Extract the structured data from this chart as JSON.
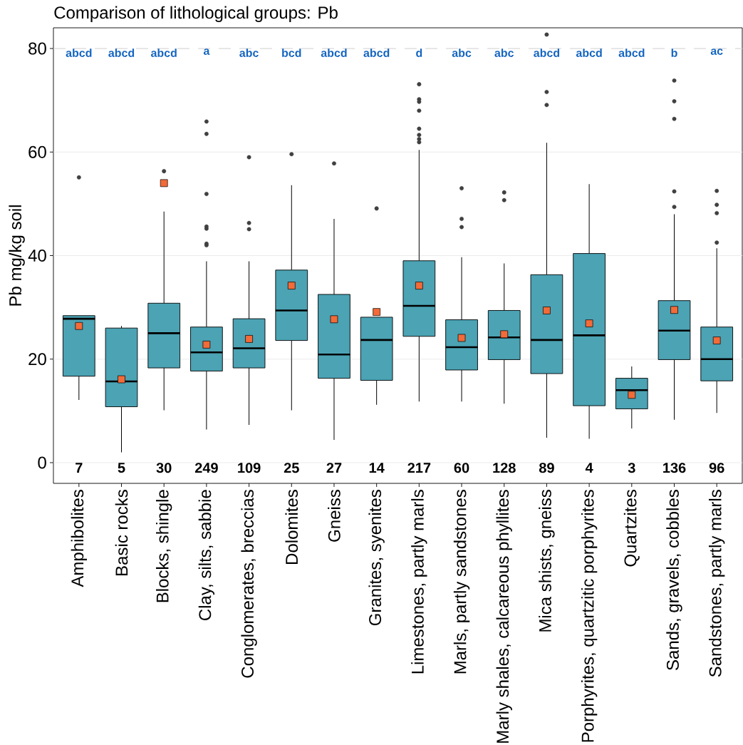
{
  "chart_data": {
    "type": "box",
    "title": "Comparison of lithological groups: Pb",
    "ylabel": "Pb mg/kg soil",
    "categories": [
      "Amphibolites",
      "Basic rocks",
      "Blocks, shingle",
      "Clay, silts, sabbie",
      "Conglomerates, breccias",
      "Dolomites",
      "Gneiss",
      "Granites, syenites",
      "Limestones, partly marls",
      "Marls, partly sandstones",
      "Marly shales, calcareous phyllites",
      "Mica shists, gneiss",
      "Porphyrites, quartzitic porphyrites",
      "Quartzites",
      "Sands, gravels, cobbles",
      "Sandstones, partly marls"
    ],
    "color": "#4ba3b4",
    "boxes": [
      {
        "low": 12.1,
        "q1": 16.7,
        "median": 27.8,
        "q3": 28.4,
        "high": 28.4,
        "mean": 26.4,
        "outliers": [
          55.1
        ]
      },
      {
        "low": 2.0,
        "q1": 10.8,
        "median": 15.7,
        "q3": 26.0,
        "high": 26.4,
        "mean": 16.1
      },
      {
        "low": 10.1,
        "q1": 18.3,
        "median": 25.0,
        "q3": 30.8,
        "high": 48.5,
        "mean": 54.0,
        "outliers": [
          56.3
        ]
      },
      {
        "low": 6.4,
        "q1": 17.7,
        "median": 21.3,
        "q3": 26.2,
        "high": 38.9,
        "mean": 22.8,
        "outliers": [
          42.0,
          42.3,
          45.2,
          45.6,
          51.9,
          63.5,
          65.9
        ]
      },
      {
        "low": 7.3,
        "q1": 18.3,
        "median": 22.1,
        "q3": 27.8,
        "high": 38.9,
        "mean": 23.9,
        "outliers": [
          45.1,
          46.3,
          59.0
        ]
      },
      {
        "low": 10.1,
        "q1": 23.6,
        "median": 29.4,
        "q3": 37.2,
        "high": 53.6,
        "mean": 34.2,
        "outliers": [
          59.6
        ]
      },
      {
        "low": 4.4,
        "q1": 16.3,
        "median": 20.9,
        "q3": 32.5,
        "high": 47.1,
        "mean": 27.7,
        "outliers": [
          57.8
        ]
      },
      {
        "low": 11.2,
        "q1": 15.9,
        "median": 23.7,
        "q3": 28.1,
        "high": 28.1,
        "mean": 29.1,
        "outliers": [
          49.1
        ]
      },
      {
        "low": 11.8,
        "q1": 24.4,
        "median": 30.3,
        "q3": 39.0,
        "high": 60.4,
        "mean": 34.2,
        "outliers": [
          61.9,
          62.5,
          63.3,
          64.5,
          68.0,
          69.7,
          70.2,
          73.1
        ]
      },
      {
        "low": 11.8,
        "q1": 17.9,
        "median": 22.3,
        "q3": 27.6,
        "high": 39.7,
        "mean": 24.1,
        "outliers": [
          45.5,
          47.1,
          53.0
        ]
      },
      {
        "low": 11.4,
        "q1": 19.9,
        "median": 24.2,
        "q3": 29.4,
        "high": 38.5,
        "mean": 24.8,
        "outliers": [
          50.7,
          52.2
        ]
      },
      {
        "low": 4.8,
        "q1": 17.2,
        "median": 23.7,
        "q3": 36.3,
        "high": 61.8,
        "mean": 29.4,
        "outliers": [
          69.1,
          71.6,
          82.7
        ]
      },
      {
        "low": 4.6,
        "q1": 11.0,
        "median": 24.6,
        "q3": 40.4,
        "high": 53.8,
        "mean": 26.9
      },
      {
        "low": 6.6,
        "q1": 10.4,
        "median": 14.0,
        "q3": 16.3,
        "high": 18.6,
        "mean": 13.1
      },
      {
        "low": 8.3,
        "q1": 19.9,
        "median": 25.5,
        "q3": 31.3,
        "high": 48.0,
        "mean": 29.5,
        "outliers": [
          49.4,
          52.4,
          66.4,
          69.8,
          73.8
        ]
      },
      {
        "low": 9.6,
        "q1": 15.8,
        "median": 20.0,
        "q3": 26.2,
        "high": 41.4,
        "mean": 23.6,
        "outliers": [
          42.5,
          48.2,
          49.8,
          52.5
        ]
      }
    ],
    "ylim": [
      -4,
      84
    ],
    "yticks": [
      0,
      20,
      40,
      60,
      80
    ],
    "grid": "y",
    "ref_lines": [
      {
        "axis": "y",
        "value": 80,
        "color": "#d9d9d9",
        "line_style": "dashed"
      }
    ],
    "annotations": [
      {
        "text": "abcd",
        "x": "Amphibolites",
        "y": 80
      },
      {
        "text": "abcd",
        "x": "Basic rocks",
        "y": 80
      },
      {
        "text": "abcd",
        "x": "Blocks, shingle",
        "y": 80
      },
      {
        "text": "a",
        "x": "Clay, silts, sabbie",
        "y": 80
      },
      {
        "text": "abc",
        "x": "Conglomerates, breccias",
        "y": 80
      },
      {
        "text": "bcd",
        "x": "Dolomites",
        "y": 80
      },
      {
        "text": "abcd",
        "x": "Gneiss",
        "y": 80
      },
      {
        "text": "abcd",
        "x": "Granites, syenites",
        "y": 80
      },
      {
        "text": "d",
        "x": "Limestones, partly marls",
        "y": 80
      },
      {
        "text": "abc",
        "x": "Marls, partly sandstones",
        "y": 80
      },
      {
        "text": "abc",
        "x": "Marly shales, calcareous phyllites",
        "y": 80
      },
      {
        "text": "abcd",
        "x": "Mica shists, gneiss",
        "y": 80
      },
      {
        "text": "abcd",
        "x": "Porphyrites, quartzitic porphyrites",
        "y": 80
      },
      {
        "text": "abcd",
        "x": "Quartzites",
        "y": 80
      },
      {
        "text": "b",
        "x": "Sands, gravels, cobbles",
        "y": 80
      },
      {
        "text": "ac",
        "x": "Sandstones, partly marls",
        "y": 80
      },
      "7",
      "5",
      "30",
      "249",
      "109",
      "25",
      "27",
      "14",
      "217",
      "60",
      "128",
      "89",
      "4",
      "3",
      "136",
      "96"
    ]
  }
}
